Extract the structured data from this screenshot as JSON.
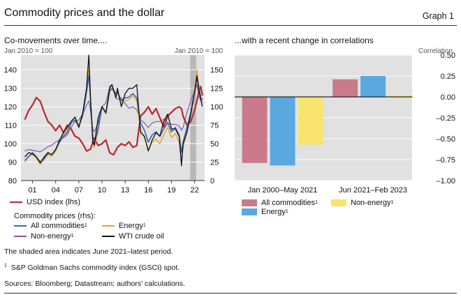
{
  "header": {
    "title": "Commodity prices and the dollar",
    "graph_label": "Graph 1"
  },
  "left_panel": {
    "subtitle": "Co-movements over time....",
    "left_unit": "Jan 2010 = 100",
    "right_unit": "Jan 2010 = 100"
  },
  "right_panel": {
    "subtitle": "...with a recent change in correlations",
    "unit": "Correlation"
  },
  "legend_left": {
    "usd": "USD index (lhs)",
    "heading": "Commodity prices (rhs):",
    "all": "All commodities",
    "energy": "Energy",
    "nonenergy": "Non-energy",
    "wti": "WTI crude oil",
    "sup": "1"
  },
  "legend_right": {
    "all": "All commodities",
    "nonenergy": "Non-energy",
    "energy": "Energy",
    "sup": "1"
  },
  "notes": {
    "shaded": "The shaded area indicates June 2021–latest period.",
    "footnote_num": "1",
    "footnote": "S&P Goldman Sachs commodity index (GSCI) spot.",
    "sources": "Sources: Bloomberg; Datastream; authors' calculations."
  },
  "colors": {
    "usd": "#b5292f",
    "all": "#2e6bb4",
    "energy": "#e8a326",
    "nonenergy": "#7d57a6",
    "wti": "#111111",
    "bar_all": "#c97b8b",
    "bar_energy": "#5aa8e0",
    "bar_nonenergy": "#f8e36f",
    "shade": "#b8b8b8",
    "panel_bg": "#e1e1e1"
  },
  "chart_data": [
    {
      "type": "line",
      "title": "Co-movements over time....",
      "x_tick_labels": [
        "01",
        "04",
        "07",
        "10",
        "13",
        "16",
        "19",
        "22"
      ],
      "x_tick_years": [
        2001,
        2004,
        2007,
        2010,
        2013,
        2016,
        2019,
        2022
      ],
      "xlim": [
        1999.5,
        2023.3
      ],
      "shaded_period": [
        2021.42,
        2022.2
      ],
      "y_left": {
        "label": "Jan 2010 = 100",
        "ylim": [
          80,
          148
        ],
        "ticks": [
          80,
          90,
          100,
          110,
          120,
          130,
          140
        ]
      },
      "y_right": {
        "label": "Jan 2010 = 100",
        "ylim": [
          0,
          170
        ],
        "ticks": [
          0,
          25,
          50,
          75,
          100,
          125,
          150
        ]
      },
      "series": [
        {
          "name": "USD index (lhs)",
          "axis": "left",
          "key": "usd",
          "x": [
            2000.0,
            2000.5,
            2001.0,
            2001.5,
            2002.0,
            2002.5,
            2003.0,
            2003.5,
            2004.0,
            2004.5,
            2005.0,
            2005.5,
            2006.0,
            2006.5,
            2007.0,
            2007.5,
            2008.0,
            2008.5,
            2009.0,
            2009.5,
            2010.0,
            2010.5,
            2011.0,
            2011.5,
            2012.0,
            2012.5,
            2013.0,
            2013.5,
            2014.0,
            2014.5,
            2015.0,
            2015.5,
            2016.0,
            2016.5,
            2017.0,
            2017.5,
            2018.0,
            2018.5,
            2019.0,
            2019.5,
            2020.0,
            2020.3,
            2020.5,
            2021.0,
            2021.5,
            2022.0,
            2022.5,
            2022.8,
            2023.0
          ],
          "values": [
            113,
            118,
            121,
            125,
            123,
            117,
            112,
            110,
            107,
            110,
            106,
            110,
            108,
            104,
            103,
            100,
            96,
            97,
            103,
            99,
            100,
            102,
            95,
            94,
            98,
            100,
            99,
            101,
            98,
            99,
            115,
            117,
            120,
            116,
            119,
            114,
            109,
            115,
            117,
            119,
            120,
            119,
            115,
            110,
            112,
            118,
            127,
            131,
            126
          ]
        },
        {
          "name": "All commodities",
          "axis": "right",
          "key": "all",
          "x": [
            2000.0,
            2000.5,
            2001.0,
            2001.5,
            2002.0,
            2002.5,
            2003.0,
            2003.5,
            2004.0,
            2004.5,
            2005.0,
            2005.5,
            2006.0,
            2006.5,
            2007.0,
            2007.5,
            2008.0,
            2008.3,
            2008.5,
            2008.8,
            2009.0,
            2009.5,
            2010.0,
            2010.5,
            2011.0,
            2011.3,
            2011.8,
            2012.0,
            2012.5,
            2013.0,
            2013.5,
            2014.0,
            2014.5,
            2015.0,
            2015.5,
            2016.0,
            2016.5,
            2017.0,
            2017.5,
            2018.0,
            2018.5,
            2019.0,
            2019.5,
            2020.0,
            2020.3,
            2020.5,
            2021.0,
            2021.5,
            2022.0,
            2022.3,
            2022.5,
            2022.8,
            2023.0
          ],
          "values": [
            27,
            33,
            38,
            32,
            25,
            30,
            37,
            35,
            42,
            52,
            60,
            65,
            78,
            82,
            73,
            88,
            120,
            142,
            110,
            60,
            50,
            70,
            100,
            92,
            122,
            125,
            118,
            120,
            108,
            112,
            113,
            118,
            112,
            78,
            68,
            52,
            62,
            66,
            60,
            70,
            78,
            66,
            72,
            62,
            38,
            52,
            72,
            92,
            120,
            140,
            128,
            112,
            110
          ]
        },
        {
          "name": "Energy",
          "axis": "right",
          "key": "energy",
          "x": [
            2000.0,
            2000.5,
            2001.0,
            2001.5,
            2002.0,
            2002.5,
            2003.0,
            2003.5,
            2004.0,
            2004.5,
            2005.0,
            2005.5,
            2006.0,
            2006.5,
            2007.0,
            2007.5,
            2008.0,
            2008.3,
            2008.5,
            2008.8,
            2009.0,
            2009.5,
            2010.0,
            2010.5,
            2011.0,
            2011.3,
            2011.8,
            2012.0,
            2012.5,
            2013.0,
            2013.5,
            2014.0,
            2014.5,
            2015.0,
            2015.5,
            2016.0,
            2016.5,
            2017.0,
            2017.5,
            2018.0,
            2018.5,
            2019.0,
            2019.5,
            2020.0,
            2020.3,
            2020.5,
            2021.0,
            2021.5,
            2022.0,
            2022.3,
            2022.5,
            2022.8,
            2023.0
          ],
          "values": [
            25,
            32,
            36,
            30,
            22,
            28,
            35,
            33,
            40,
            52,
            62,
            68,
            80,
            85,
            75,
            90,
            125,
            150,
            112,
            55,
            45,
            66,
            100,
            90,
            120,
            124,
            115,
            119,
            103,
            108,
            110,
            115,
            108,
            68,
            58,
            42,
            52,
            56,
            50,
            62,
            72,
            58,
            64,
            52,
            28,
            44,
            66,
            88,
            125,
            150,
            132,
            112,
            108
          ]
        },
        {
          "name": "Non-energy",
          "axis": "right",
          "key": "nonenergy",
          "x": [
            2000.0,
            2000.5,
            2001.0,
            2001.5,
            2002.0,
            2002.5,
            2003.0,
            2003.5,
            2004.0,
            2004.5,
            2005.0,
            2005.5,
            2006.0,
            2006.5,
            2007.0,
            2007.5,
            2008.0,
            2008.3,
            2008.5,
            2008.8,
            2009.0,
            2009.5,
            2010.0,
            2010.5,
            2011.0,
            2011.3,
            2011.8,
            2012.0,
            2012.5,
            2013.0,
            2013.5,
            2014.0,
            2014.5,
            2015.0,
            2015.5,
            2016.0,
            2016.5,
            2017.0,
            2017.5,
            2018.0,
            2018.5,
            2019.0,
            2019.5,
            2020.0,
            2020.3,
            2020.5,
            2021.0,
            2021.5,
            2022.0,
            2022.3,
            2022.5,
            2022.8,
            2023.0
          ],
          "values": [
            40,
            42,
            41,
            40,
            39,
            42,
            46,
            48,
            52,
            55,
            58,
            62,
            72,
            80,
            82,
            90,
            102,
            108,
            95,
            70,
            66,
            78,
            100,
            105,
            128,
            130,
            112,
            110,
            112,
            104,
            98,
            100,
            96,
            82,
            78,
            72,
            78,
            80,
            80,
            83,
            78,
            76,
            76,
            74,
            68,
            72,
            92,
            108,
            122,
            130,
            116,
            108,
            106
          ]
        },
        {
          "name": "WTI crude oil",
          "axis": "right",
          "key": "wti",
          "x": [
            2000.0,
            2000.5,
            2001.0,
            2001.5,
            2002.0,
            2002.5,
            2003.0,
            2003.5,
            2004.0,
            2004.5,
            2005.0,
            2005.5,
            2006.0,
            2006.5,
            2007.0,
            2007.5,
            2008.0,
            2008.3,
            2008.5,
            2008.8,
            2009.0,
            2009.5,
            2010.0,
            2010.5,
            2011.0,
            2011.3,
            2011.8,
            2012.0,
            2012.5,
            2013.0,
            2013.5,
            2014.0,
            2014.5,
            2015.0,
            2015.5,
            2016.0,
            2016.5,
            2017.0,
            2017.5,
            2018.0,
            2018.5,
            2019.0,
            2019.5,
            2020.0,
            2020.3,
            2020.5,
            2021.0,
            2021.5,
            2022.0,
            2022.3,
            2022.5,
            2022.8,
            2023.0
          ],
          "values": [
            32,
            38,
            36,
            32,
            24,
            32,
            38,
            35,
            42,
            55,
            65,
            72,
            80,
            86,
            72,
            92,
            125,
            170,
            115,
            52,
            48,
            85,
            100,
            92,
            125,
            130,
            112,
            125,
            100,
            118,
            125,
            125,
            130,
            65,
            60,
            40,
            55,
            65,
            60,
            80,
            90,
            70,
            70,
            60,
            20,
            50,
            65,
            90,
            120,
            142,
            125,
            110,
            100
          ]
        }
      ]
    },
    {
      "type": "bar",
      "title": "...with a recent change in correlations",
      "ylabel": "Correlation",
      "ylim": [
        -1.0,
        0.5
      ],
      "y_ticks": [
        -1.0,
        -0.75,
        -0.5,
        -0.25,
        0.0,
        0.25,
        0.5
      ],
      "y_tick_labels": [
        "–1.00",
        "–0.75",
        "–0.50",
        "–0.25",
        "0.00",
        "0.25",
        "0.50"
      ],
      "categories": [
        "Jan 2000–May 2021",
        "Jun 2021–Feb 2023"
      ],
      "series": [
        {
          "name": "All commodities",
          "key": "bar_all",
          "values": [
            -0.79,
            0.21
          ]
        },
        {
          "name": "Energy",
          "key": "bar_energy",
          "values": [
            -0.82,
            0.25
          ]
        },
        {
          "name": "Non-energy",
          "key": "bar_nonenergy",
          "values": [
            -0.57,
            0.02
          ]
        }
      ]
    }
  ]
}
